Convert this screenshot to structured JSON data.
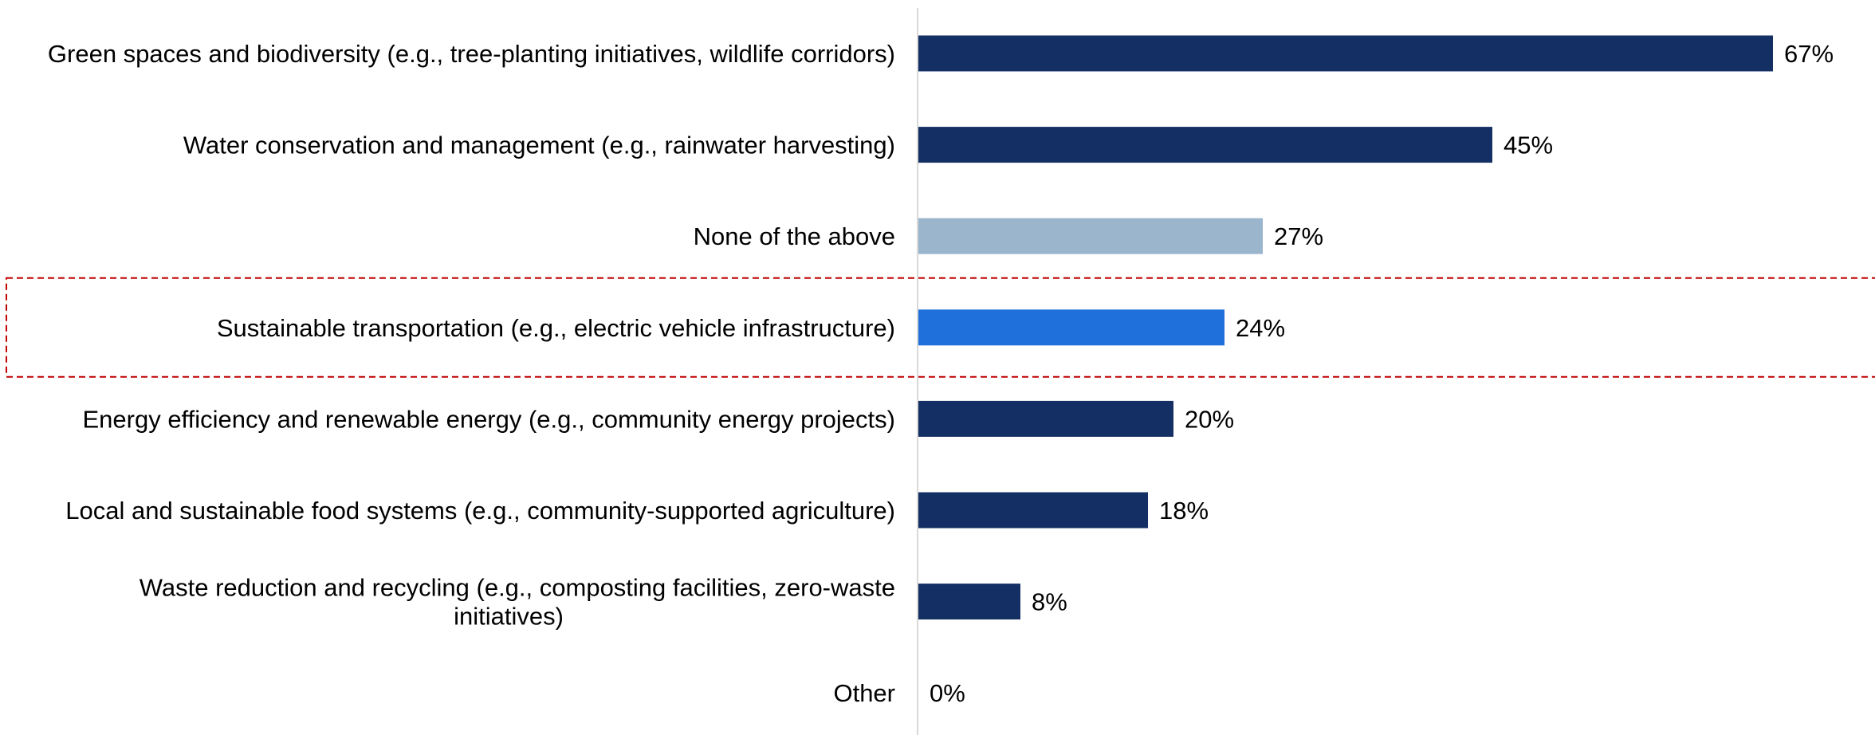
{
  "chart_data": {
    "type": "bar",
    "orientation": "horizontal",
    "categories": [
      [
        "Green spaces and biodiversity (e.g., tree-planting initiatives, wildlife corridors)"
      ],
      [
        "Water conservation and management (e.g., rainwater harvesting)"
      ],
      [
        "None of the above"
      ],
      [
        "Sustainable transportation (e.g., electric vehicle infrastructure)"
      ],
      [
        "Energy efficiency and renewable energy (e.g., community energy projects)"
      ],
      [
        "Local and sustainable food systems (e.g., community-supported agriculture)"
      ],
      [
        "Waste reduction and recycling (e.g., composting facilities, zero-waste",
        "initiatives)"
      ],
      [
        "Other"
      ]
    ],
    "values": [
      67,
      45,
      27,
      24,
      20,
      18,
      8,
      0
    ],
    "value_labels": [
      "67%",
      "45%",
      "27%",
      "24%",
      "20%",
      "18%",
      "8%",
      "0%"
    ],
    "bar_colors": [
      "#132f63",
      "#132f63",
      "#9bb5cd",
      "#1f70da",
      "#132f63",
      "#132f63",
      "#132f63",
      "#132f63"
    ],
    "highlight_index": 3,
    "highlight_color": "#c00000",
    "axis_color": "#d9d9d9",
    "title": "",
    "xlabel": "",
    "ylabel": "",
    "xlim": [
      0,
      100
    ],
    "grid": false,
    "legend": "none"
  }
}
